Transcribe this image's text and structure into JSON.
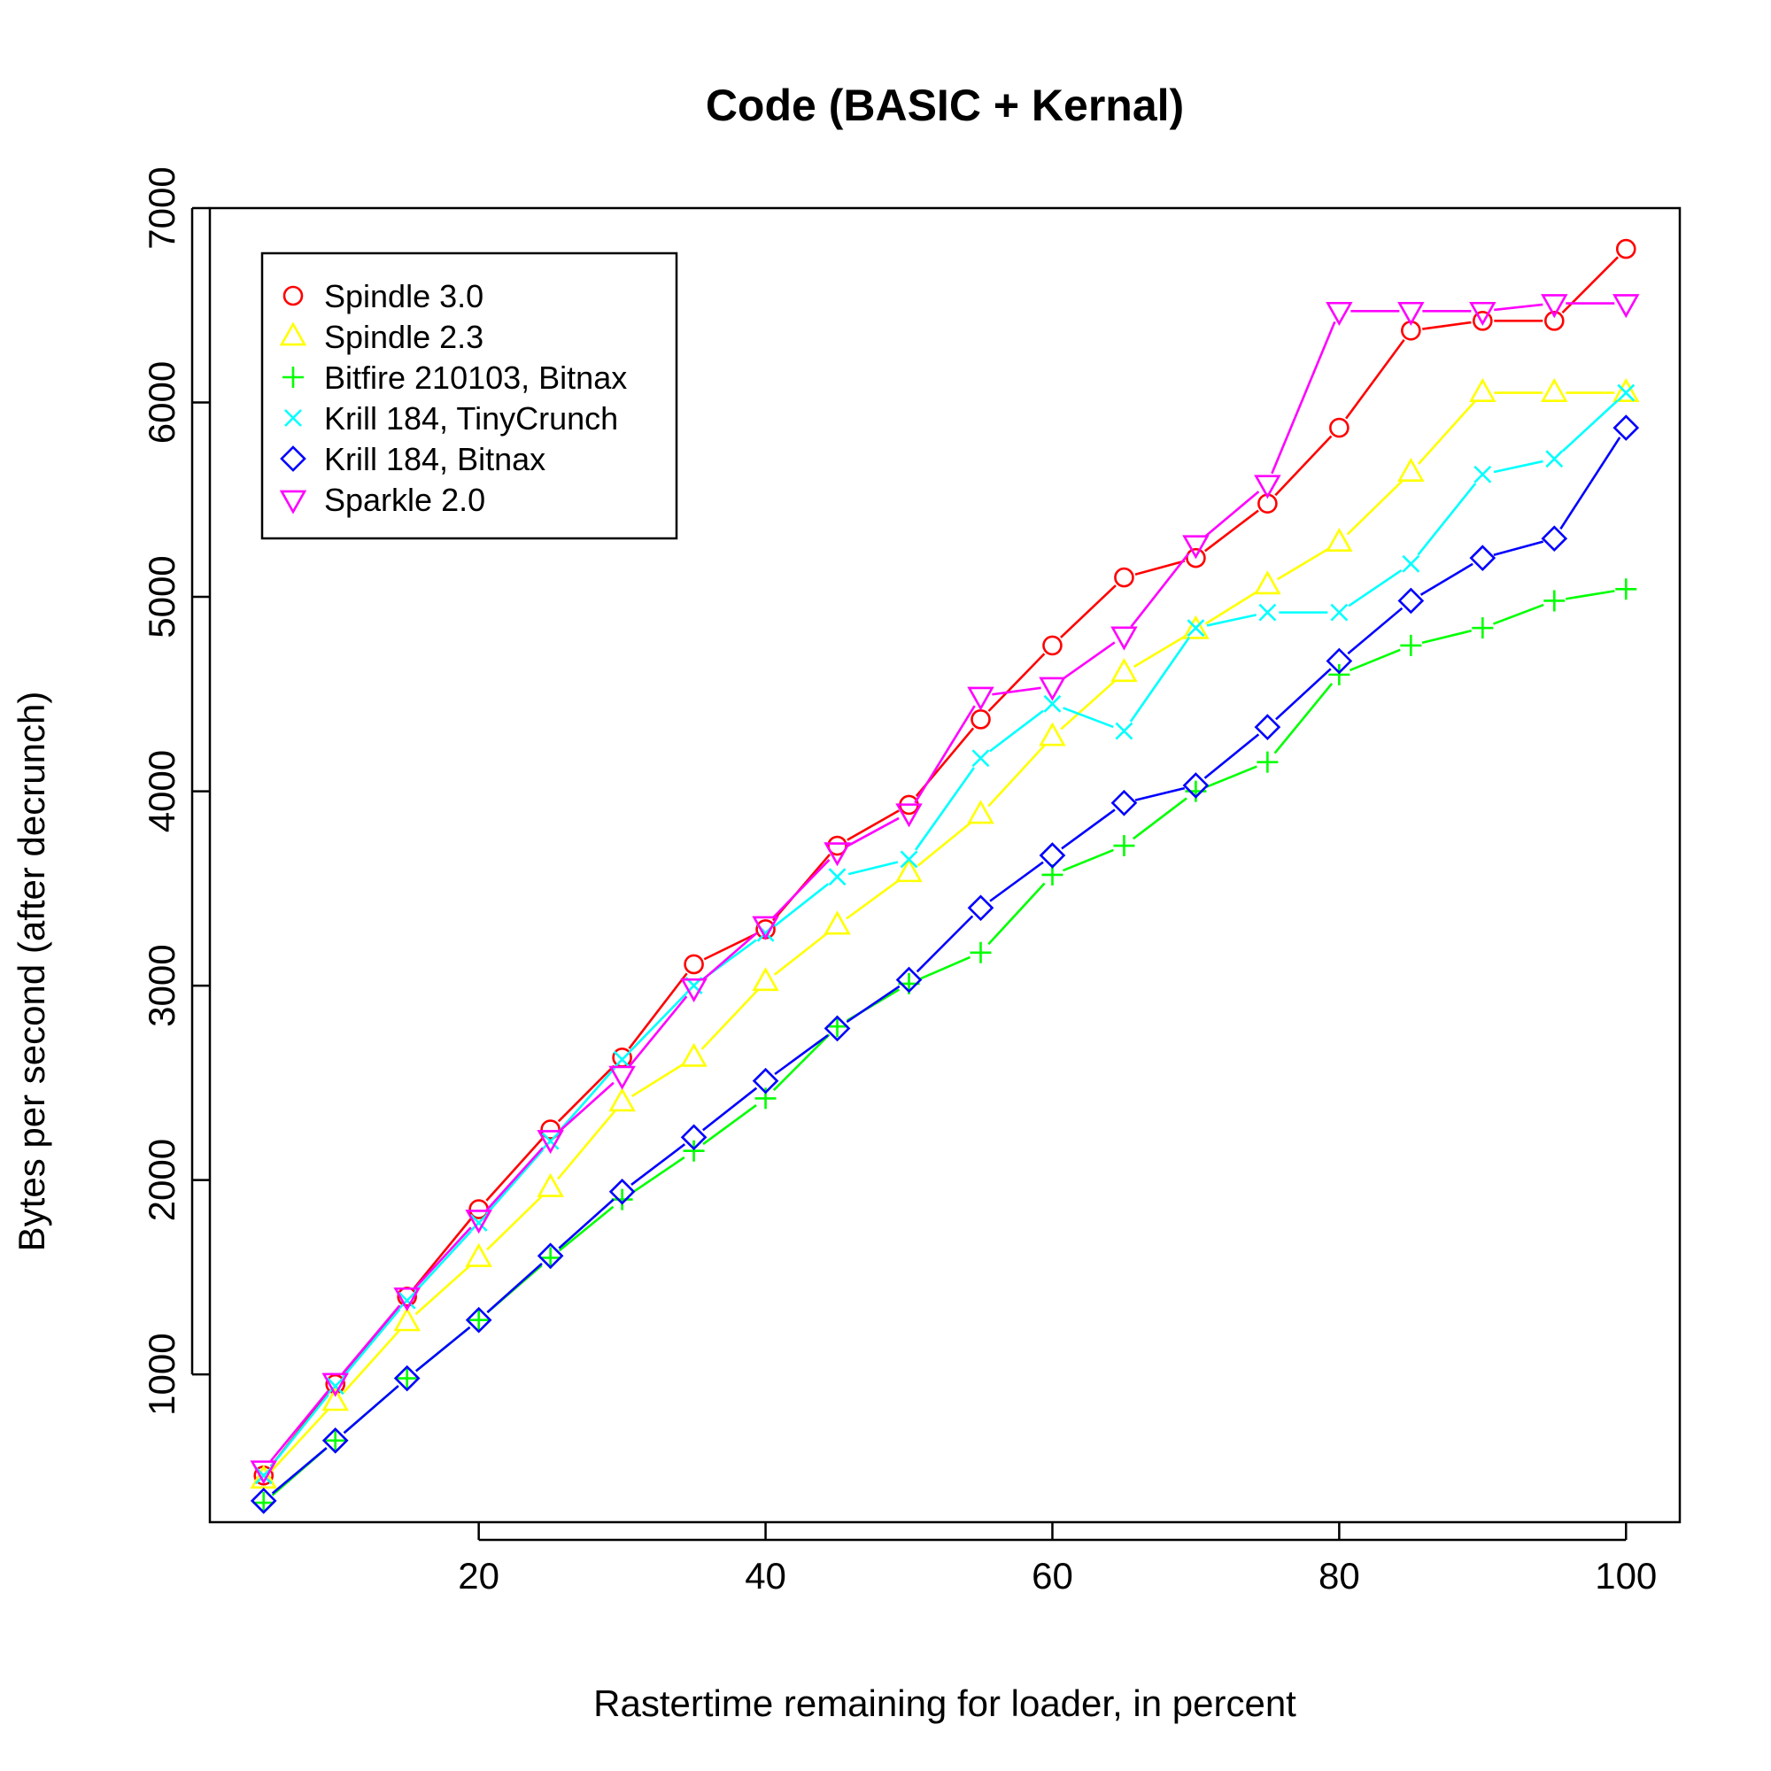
{
  "chart_data": {
    "type": "line",
    "title": "Code (BASIC + Kernal)",
    "xlabel": "Rastertime remaining for loader, in percent",
    "ylabel": "Bytes per second (after decrunch)",
    "xlim": [
      1.25,
      103.75
    ],
    "ylim": [
      240,
      7000
    ],
    "xticks": [
      20,
      40,
      60,
      80,
      100
    ],
    "yticks": [
      1000,
      2000,
      3000,
      4000,
      5000,
      6000,
      7000
    ],
    "legend_position": "top-left",
    "grid": false,
    "x": [
      5,
      10,
      15,
      20,
      25,
      30,
      35,
      40,
      45,
      50,
      55,
      60,
      65,
      70,
      75,
      80,
      85,
      90,
      95,
      100
    ],
    "series": [
      {
        "name": "Spindle 3.0",
        "color": "#ff0000",
        "marker": "circle",
        "values": [
          480,
          950,
          1400,
          1850,
          2260,
          2630,
          3110,
          3290,
          3720,
          3930,
          4370,
          4750,
          5100,
          5200,
          5480,
          5870,
          6370,
          6420,
          6420,
          6790
        ]
      },
      {
        "name": "Spindle 2.3",
        "color": "#ffff00",
        "marker": "triangle-up",
        "values": [
          460,
          860,
          1270,
          1600,
          1960,
          2400,
          2630,
          3020,
          3310,
          3580,
          3880,
          4280,
          4610,
          4830,
          5060,
          5280,
          5640,
          6050,
          6050,
          6050
        ]
      },
      {
        "name": "Bitfire 210103, Bitnax",
        "color": "#00ff00",
        "marker": "plus",
        "values": [
          340,
          660,
          980,
          1280,
          1600,
          1900,
          2150,
          2420,
          2790,
          3010,
          3170,
          3570,
          3720,
          4000,
          4150,
          4600,
          4750,
          4840,
          4980,
          5040
        ]
      },
      {
        "name": "Krill 184, TinyCrunch",
        "color": "#00ffff",
        "marker": "x",
        "values": [
          480,
          940,
          1380,
          1780,
          2200,
          2620,
          3000,
          3270,
          3560,
          3650,
          4170,
          4450,
          4310,
          4840,
          4920,
          4920,
          5170,
          5630,
          5710,
          6050
        ]
      },
      {
        "name": "Krill 184, Bitnax",
        "color": "#0000ff",
        "marker": "diamond",
        "values": [
          350,
          660,
          980,
          1280,
          1610,
          1940,
          2220,
          2510,
          2780,
          3030,
          3400,
          3670,
          3940,
          4030,
          4330,
          4670,
          4980,
          5200,
          5300,
          5870
        ]
      },
      {
        "name": "Sparkle 2.0",
        "color": "#ff00ff",
        "marker": "triangle-down",
        "values": [
          510,
          960,
          1400,
          1800,
          2210,
          2540,
          2990,
          3310,
          3690,
          3890,
          4490,
          4540,
          4800,
          5270,
          5580,
          6470,
          6470,
          6470,
          6510,
          6510
        ]
      }
    ]
  }
}
